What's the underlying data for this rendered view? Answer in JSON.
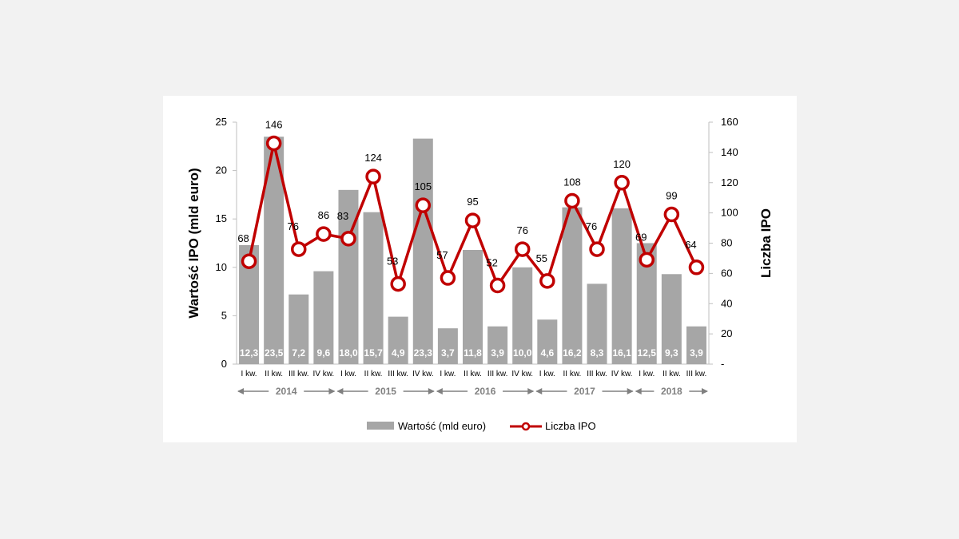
{
  "chart_data": {
    "type": "bar+line",
    "categories": [
      "I kw.",
      "II kw.",
      "III kw.",
      "IV kw.",
      "I kw.",
      "II kw.",
      "III kw.",
      "IV kw.",
      "I kw.",
      "II kw.",
      "III kw.",
      "IV kw.",
      "I kw.",
      "II kw.",
      "III kw.",
      "IV kw.",
      "I kw.",
      "II kw.",
      "III kw."
    ],
    "years": [
      {
        "label": "2014",
        "start": 0,
        "end": 3
      },
      {
        "label": "2015",
        "start": 4,
        "end": 7
      },
      {
        "label": "2016",
        "start": 8,
        "end": 11
      },
      {
        "label": "2017",
        "start": 12,
        "end": 15
      },
      {
        "label": "2018",
        "start": 16,
        "end": 18
      }
    ],
    "series": [
      {
        "name": "Wartość (mld euro)",
        "type": "bar",
        "axis": "left",
        "color": "#a6a6a6",
        "values": [
          12.3,
          23.5,
          7.2,
          9.6,
          18.0,
          15.7,
          4.9,
          23.3,
          3.7,
          11.8,
          3.9,
          10.0,
          4.6,
          16.2,
          8.3,
          16.1,
          12.5,
          9.3,
          3.9
        ],
        "labels": [
          "12,3",
          "23,5",
          "7,2",
          "9,6",
          "18,0",
          "15,7",
          "4,9",
          "23,3",
          "3,7",
          "11,8",
          "3,9",
          "10,0",
          "4,6",
          "16,2",
          "8,3",
          "16,1",
          "12,5",
          "9,3",
          "3,9"
        ]
      },
      {
        "name": "Liczba IPO",
        "type": "line",
        "axis": "right",
        "color": "#c00000",
        "values": [
          68,
          146,
          76,
          86,
          83,
          124,
          53,
          105,
          57,
          95,
          52,
          76,
          55,
          108,
          76,
          120,
          69,
          99,
          64
        ],
        "labels": [
          "68",
          "146",
          "76",
          "86",
          "83",
          "124",
          "53",
          "105",
          "57",
          "95",
          "52",
          "76",
          "55",
          "108",
          "76",
          "120",
          "69",
          "99",
          "64"
        ]
      }
    ],
    "y_left": {
      "label": "Wartość IPO (mld euro)",
      "min": 0,
      "max": 25,
      "ticks": [
        "0",
        "5",
        "10",
        "15",
        "20",
        "25"
      ]
    },
    "y_right": {
      "label": "Liczba IPO",
      "min": 0,
      "max": 160,
      "ticks": [
        "-",
        "20",
        "40",
        "60",
        "80",
        "100",
        "120",
        "140",
        "160"
      ]
    },
    "legend": {
      "placement": "bottom",
      "items": [
        "Wartość (mld euro)",
        "Liczba IPO"
      ]
    }
  }
}
